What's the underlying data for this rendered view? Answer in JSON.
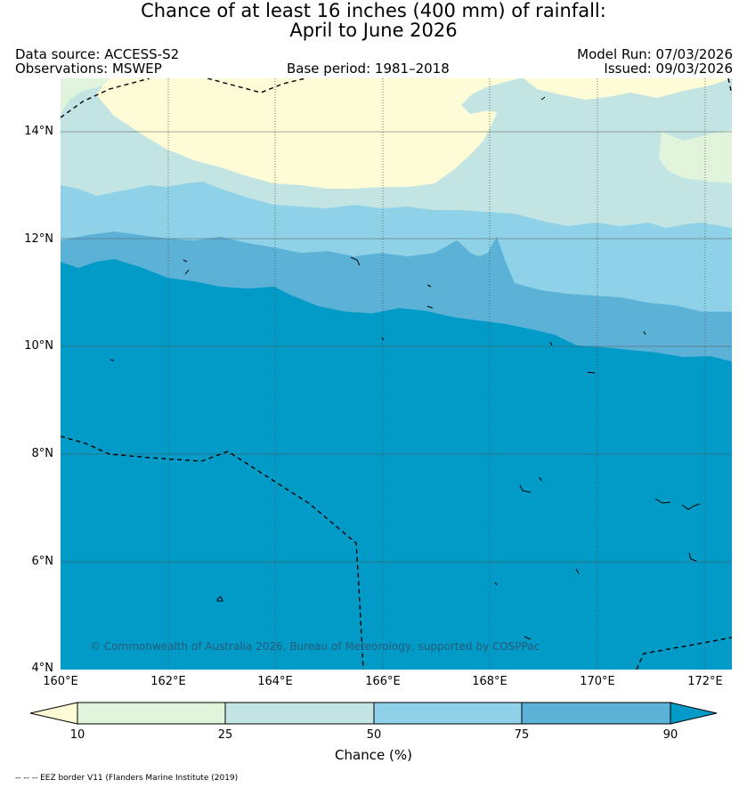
{
  "title": {
    "line1": "Chance of at least 16 inches (400  mm) of rainfall:",
    "line2": "April to June 2026"
  },
  "header": {
    "data_source": "Data source: ACCESS-S2",
    "observations": "Observations: MSWEP",
    "base_period": "Base period: 1981–2018",
    "model_run": "Model Run: 07/03/2026",
    "issued": "Issued: 09/03/2026"
  },
  "map": {
    "lat_labels": [
      "14°N",
      "12°N",
      "10°N",
      "8°N",
      "6°N",
      "4°N"
    ],
    "lon_labels": [
      "160°E",
      "162°E",
      "164°E",
      "166°E",
      "168°E",
      "170°E",
      "172°E"
    ],
    "lat_range": [
      4,
      15
    ],
    "lon_range": [
      160,
      172.5
    ],
    "credit": "© Commonwealth of Australia 2026, Bureau of Meteorology, supported by COSPPac",
    "colors": {
      "below_10": "#fefbd7",
      "10_25": "#e0f3db",
      "25_50": "#c2e5e3",
      "50_75": "#8fd2e8",
      "75_90": "#5cb2d6",
      "above_90": "#029bc7",
      "grid": "#555555",
      "eez_border": "#000000"
    }
  },
  "colorbar": {
    "ticks": [
      "10",
      "25",
      "50",
      "75",
      "90"
    ],
    "label": "Chance (%)",
    "segment_colors": [
      "#e0f3db",
      "#c2e5e3",
      "#8fd2e8",
      "#5cb2d6"
    ],
    "low_extend_color": "#fefbd7",
    "high_extend_color": "#029bc7"
  },
  "footnote": "-- -- -- EEZ border V11 (Flanders Marine Institute (2019)"
}
